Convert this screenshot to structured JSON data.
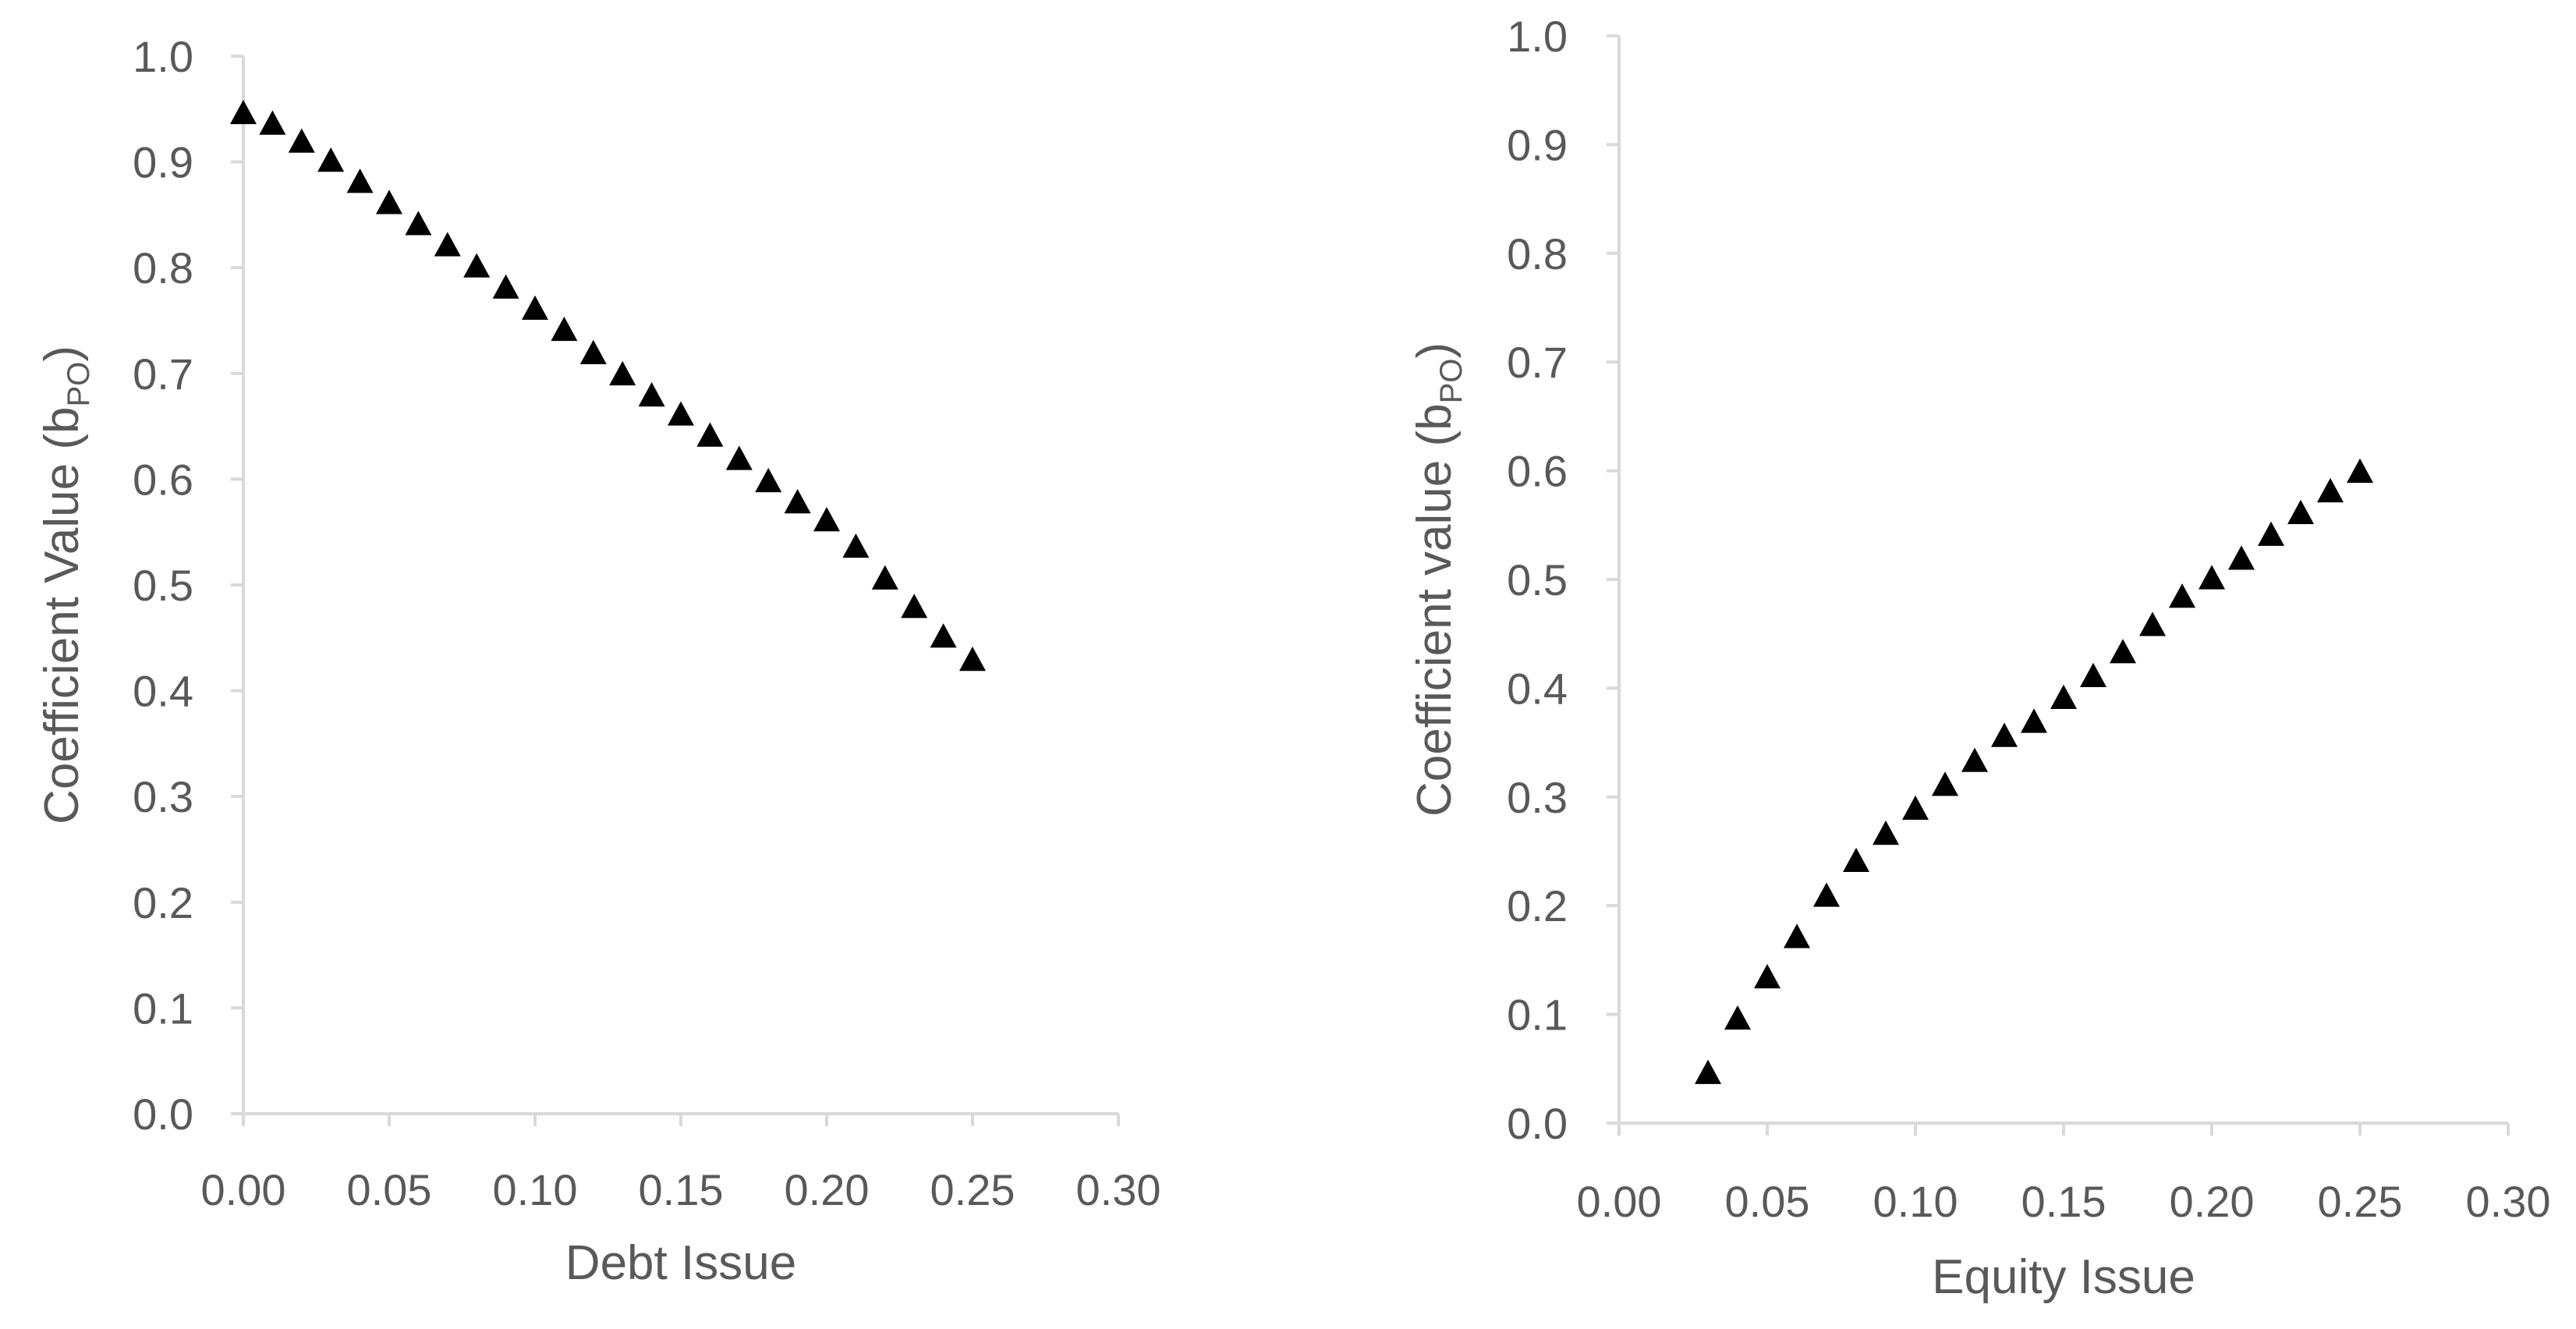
{
  "chart_data": [
    {
      "type": "scatter",
      "xlabel": "Debt Issue",
      "ylabel": "Coefficient Value (b",
      "ylabel_sub": "PO",
      "ylabel_end": ")",
      "xlim": [
        0.0,
        0.3
      ],
      "ylim": [
        0.0,
        1.0
      ],
      "xticks": [
        "0.00",
        "0.05",
        "0.10",
        "0.15",
        "0.20",
        "0.25",
        "0.30"
      ],
      "yticks": [
        "0.0",
        "0.1",
        "0.2",
        "0.3",
        "0.4",
        "0.5",
        "0.6",
        "0.7",
        "0.8",
        "0.9",
        "1.0"
      ],
      "marker": "triangle",
      "marker_color": "#000000",
      "grid": false,
      "x": [
        0.0,
        0.01,
        0.02,
        0.03,
        0.04,
        0.05,
        0.06,
        0.07,
        0.08,
        0.09,
        0.1,
        0.11,
        0.12,
        0.13,
        0.14,
        0.15,
        0.16,
        0.17,
        0.18,
        0.19,
        0.2,
        0.21,
        0.22,
        0.23,
        0.24,
        0.25
      ],
      "y": [
        0.945,
        0.935,
        0.918,
        0.9,
        0.88,
        0.86,
        0.84,
        0.82,
        0.8,
        0.78,
        0.76,
        0.74,
        0.718,
        0.698,
        0.678,
        0.66,
        0.64,
        0.618,
        0.597,
        0.577,
        0.56,
        0.535,
        0.505,
        0.478,
        0.45,
        0.428
      ]
    },
    {
      "type": "scatter",
      "xlabel": "Equity Issue",
      "ylabel": "Coefficient value (b",
      "ylabel_sub": "PO",
      "ylabel_end": ")",
      "xlim": [
        0.0,
        0.3
      ],
      "ylim": [
        0.0,
        1.0
      ],
      "xticks": [
        "0.00",
        "0.05",
        "0.10",
        "0.15",
        "0.20",
        "0.25",
        "0.30"
      ],
      "yticks": [
        "0.0",
        "0.1",
        "0.2",
        "0.3",
        "0.4",
        "0.5",
        "0.6",
        "0.7",
        "0.8",
        "0.9",
        "1.0"
      ],
      "marker": "triangle",
      "marker_color": "#000000",
      "grid": false,
      "x": [
        0.03,
        0.04,
        0.05,
        0.06,
        0.07,
        0.08,
        0.09,
        0.1,
        0.11,
        0.12,
        0.13,
        0.14,
        0.15,
        0.16,
        0.17,
        0.18,
        0.19,
        0.2,
        0.21,
        0.22,
        0.23,
        0.24,
        0.25
      ],
      "y": [
        0.045,
        0.095,
        0.133,
        0.17,
        0.208,
        0.24,
        0.265,
        0.288,
        0.31,
        0.332,
        0.355,
        0.368,
        0.39,
        0.41,
        0.432,
        0.457,
        0.483,
        0.5,
        0.518,
        0.54,
        0.56,
        0.58,
        0.598
      ]
    }
  ]
}
